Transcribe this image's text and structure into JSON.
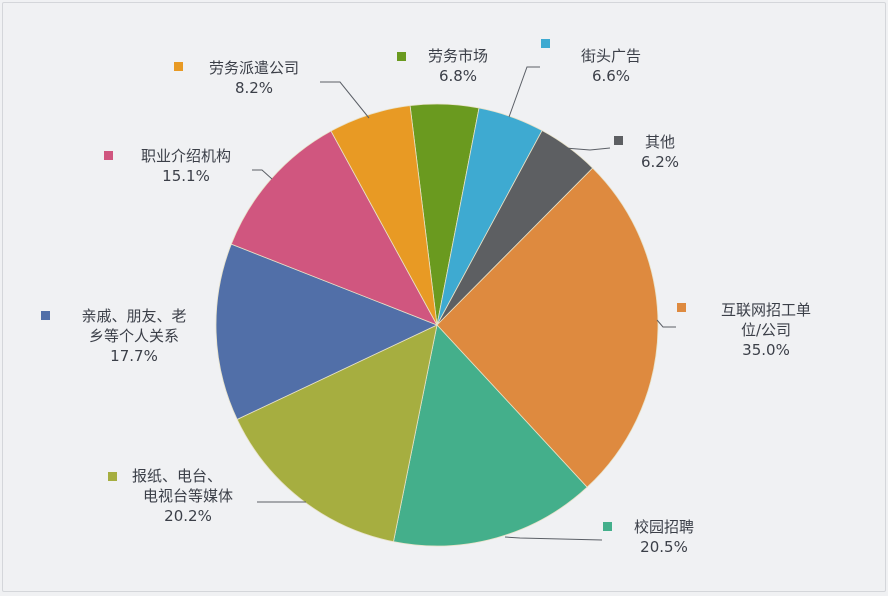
{
  "chart_data": {
    "type": "pie",
    "title": "",
    "note": "Percentages are multi-choice shares; slices are drawn proportionally to the displayed values",
    "categories": [
      "劳务市场",
      "街头广告",
      "其他",
      "互联网招工单位/公司",
      "校园招聘",
      "报纸、电台、电视台等媒体",
      "亲戚、朋友、老乡等个人关系",
      "职业介绍机构",
      "劳务派遣公司"
    ],
    "values": [
      6.8,
      6.6,
      6.2,
      35.0,
      20.5,
      20.2,
      17.7,
      15.1,
      8.2
    ],
    "value_labels": [
      "6.8%",
      "6.6%",
      "6.2%",
      "35.0%",
      "20.5%",
      "20.2%",
      "17.7%",
      "15.1%",
      "8.2%"
    ],
    "colors": [
      "#6a9a1f",
      "#3eaad1",
      "#5d5f62",
      "#de8a3f",
      "#44af8b",
      "#a6ae40",
      "#516fa8",
      "#d0567f",
      "#e89a24"
    ],
    "start_angle_deg": -97,
    "direction": "clockwise",
    "legend_position": "inline labels with leader lines"
  },
  "labels": [
    {
      "lines": [
        "劳务市场"
      ],
      "pct": "6.8%"
    },
    {
      "lines": [
        "街头广告"
      ],
      "pct": "6.6%"
    },
    {
      "lines": [
        "其他"
      ],
      "pct": "6.2%"
    },
    {
      "lines": [
        "互联网招工单",
        "位/公司"
      ],
      "pct": "35.0%"
    },
    {
      "lines": [
        "校园招聘"
      ],
      "pct": "20.5%"
    },
    {
      "lines": [
        "报纸、电台、",
        "电视台等媒体"
      ],
      "pct": "20.2%"
    },
    {
      "lines": [
        "亲戚、朋友、老",
        "乡等个人关系"
      ],
      "pct": "17.7%"
    },
    {
      "lines": [
        "职业介绍机构"
      ],
      "pct": "15.1%"
    },
    {
      "lines": [
        "劳务派遣公司"
      ],
      "pct": "8.2%"
    }
  ]
}
